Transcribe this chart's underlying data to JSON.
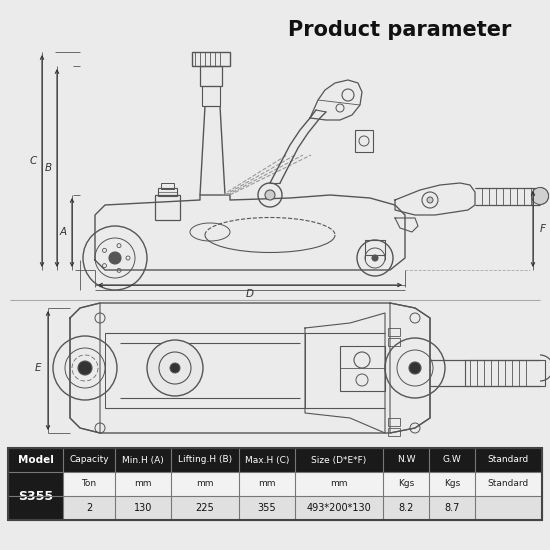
{
  "title": "Product parameter",
  "bg_color": "#ebebeb",
  "lc": "#555555",
  "lc_dark": "#333333",
  "table": {
    "headers": [
      "Model",
      "Capacity",
      "Min.H (A)",
      "Lifting.H (B)",
      "Max.H (C)",
      "Size (D*E*F)",
      "N.W",
      "G.W",
      "Standard"
    ],
    "units": [
      "",
      "Ton",
      "mm",
      "mm",
      "mm",
      "mm",
      "Kgs",
      "Kgs",
      "Standard"
    ],
    "model": "S355",
    "values": [
      "2",
      "130",
      "225",
      "355",
      "493*200*130",
      "8.2",
      "8.7",
      ""
    ]
  },
  "table_header_bg": "#1a1a1a",
  "table_row1_bg": "#f2f2f2",
  "table_row2_bg": "#e0e0e0"
}
